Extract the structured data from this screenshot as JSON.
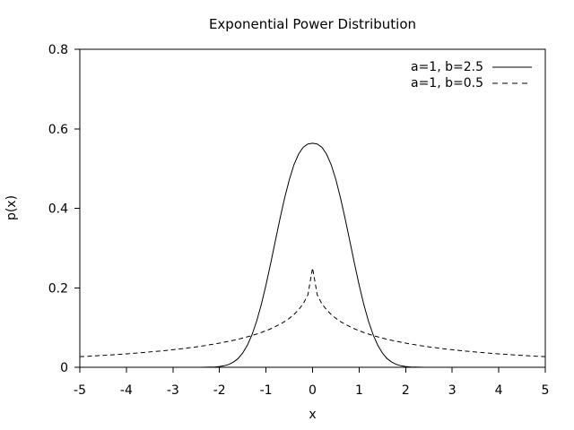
{
  "chart_data": {
    "type": "line",
    "title": "Exponential Power Distribution",
    "xlabel": "x",
    "ylabel": "p(x)",
    "xlim": [
      -5,
      5
    ],
    "ylim": [
      0,
      0.8
    ],
    "xticks": [
      -5,
      -4,
      -3,
      -2,
      -1,
      0,
      1,
      2,
      3,
      4,
      5
    ],
    "yticks": [
      0,
      0.2,
      0.4,
      0.6,
      0.8
    ],
    "grid": false,
    "legend_position": "top-right-inside",
    "tick_style": "outward, bottom and left only",
    "colors": {
      "line": "#000000",
      "text": "#000000",
      "background": "#ffffff"
    },
    "series": [
      {
        "name": "a=1, b=2.5",
        "line_style": "solid",
        "symmetric": true,
        "x_step": 0.1,
        "peak_value": 0.5635,
        "values_abs": [
          0.56353,
          0.56175,
          0.55354,
          0.53642,
          0.5093,
          0.47222,
          0.4264,
          0.37403,
          0.31793,
          0.26132,
          0.20733,
          0.15842,
          0.11637,
          0.08205,
          0.05543,
          0.03579,
          0.02211,
          0.01302,
          0.0073,
          0.00389,
          0.00197,
          0.00095,
          0.00043,
          0.00018,
          7e-05,
          3e-05,
          1e-05,
          0.0,
          0.0,
          0.0,
          0.0,
          0.0,
          0.0,
          0.0,
          0.0,
          0.0,
          0.0,
          0.0,
          0.0,
          0.0,
          0.0,
          0.0,
          0.0,
          0.0,
          0.0,
          0.0,
          0.0,
          0.0,
          0.0,
          0.0,
          0.0
        ]
      },
      {
        "name": "a=1, b=0.5",
        "line_style": "dashed",
        "symmetric": true,
        "x_step": 0.1,
        "peak_value": 0.25,
        "values_abs": [
          0.25,
          0.18222,
          0.15985,
          0.14457,
          0.13282,
          0.12327,
          0.11522,
          0.10829,
          0.10221,
          0.09681,
          0.09197,
          0.08759,
          0.0836,
          0.07993,
          0.07658,
          0.07345,
          0.07055,
          0.06787,
          0.06535,
          0.063,
          0.06079,
          0.05869,
          0.05673,
          0.05487,
          0.0531,
          0.05142,
          0.04985,
          0.04834,
          0.04689,
          0.04554,
          0.04422,
          0.04298,
          0.04179,
          0.04064,
          0.03955,
          0.0385,
          0.03749,
          0.03652,
          0.03559,
          0.0347,
          0.03383,
          0.033,
          0.0322,
          0.03143,
          0.03069,
          0.02997,
          0.02927,
          0.0286,
          0.02795,
          0.02733,
          0.02672
        ]
      }
    ]
  }
}
